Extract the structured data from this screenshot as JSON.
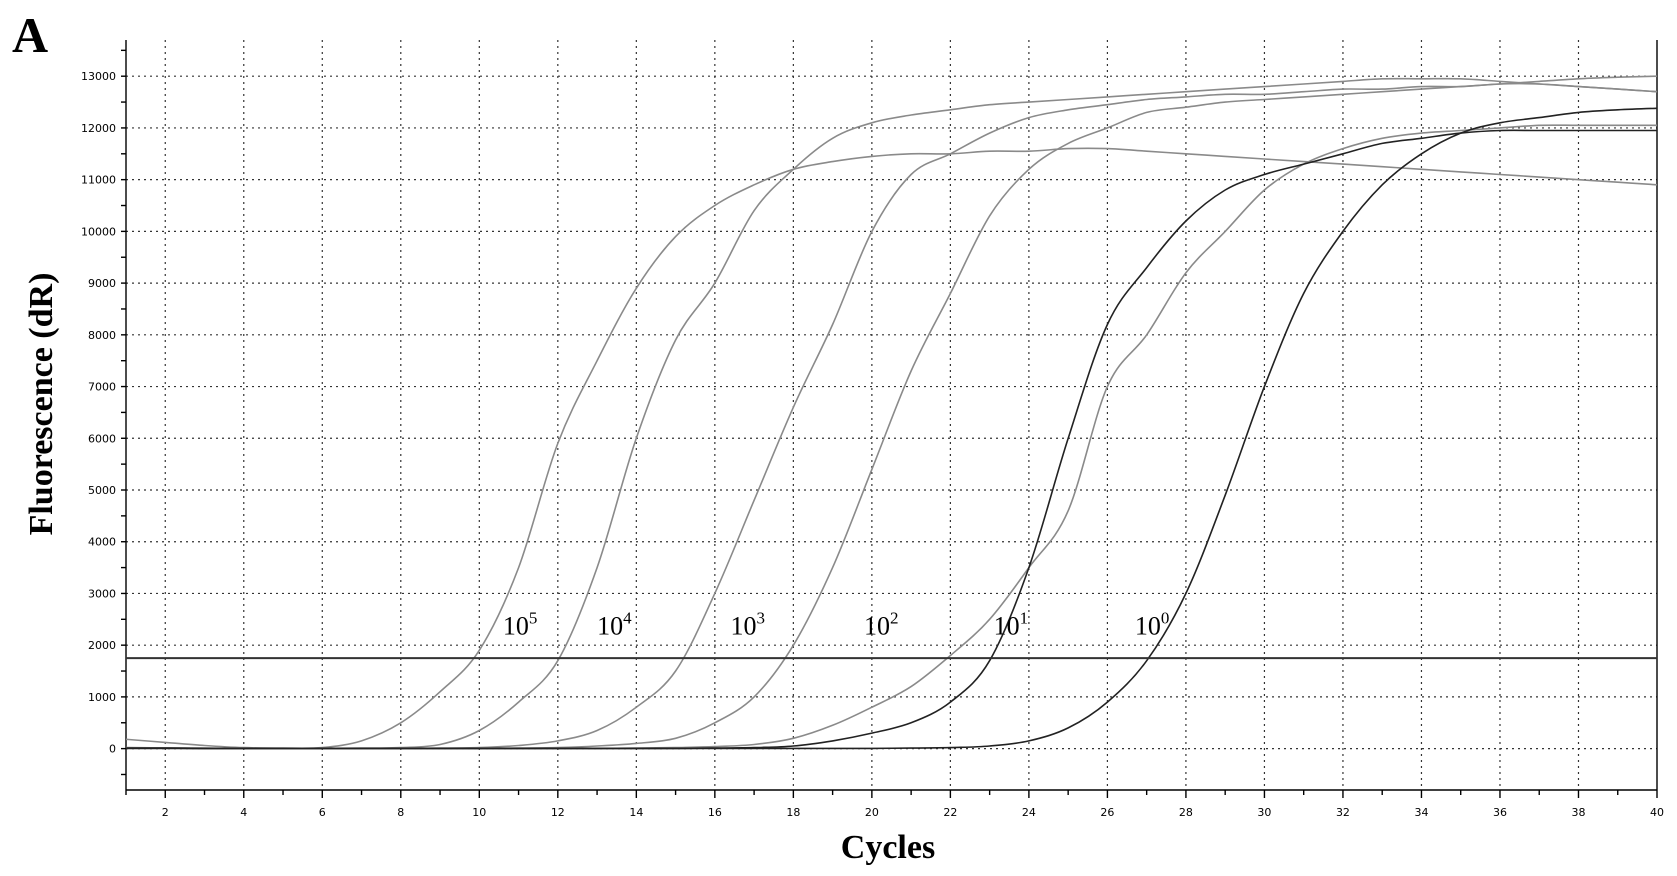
{
  "panel_label": "A",
  "chart_data": {
    "type": "line",
    "xlabel": "Cycles",
    "ylabel": "Fluorescence (dR)",
    "xlim": [
      1,
      40
    ],
    "ylim": [
      -800,
      13700
    ],
    "x_ticks": [
      2,
      4,
      6,
      8,
      10,
      12,
      14,
      16,
      18,
      20,
      22,
      24,
      26,
      28,
      30,
      32,
      34,
      36,
      38,
      40
    ],
    "y_ticks": [
      0,
      1000,
      2000,
      3000,
      4000,
      5000,
      6000,
      7000,
      8000,
      9000,
      10000,
      11000,
      12000,
      13000
    ],
    "grid": true,
    "threshold": 1750,
    "colors": {
      "gray": "#8a8a8a",
      "dark": "#222222",
      "threshold": "#333333"
    },
    "x": [
      1,
      2,
      3,
      4,
      5,
      6,
      7,
      8,
      9,
      10,
      11,
      12,
      13,
      14,
      15,
      16,
      17,
      18,
      19,
      20,
      21,
      22,
      23,
      24,
      25,
      26,
      27,
      28,
      29,
      30,
      31,
      32,
      33,
      34,
      35,
      36,
      37,
      38,
      39,
      40
    ],
    "series": [
      {
        "label_base": "10",
        "label_exp": "5",
        "label_at": [
          10.6,
          2400
        ],
        "color": "gray",
        "values": [
          180,
          120,
          60,
          20,
          10,
          20,
          150,
          500,
          1100,
          1900,
          3500,
          5900,
          7500,
          8900,
          9900,
          10500,
          10900,
          11200,
          11350,
          11450,
          11500,
          11500,
          11550,
          11550,
          11600,
          11600,
          11550,
          11500,
          11450,
          11400,
          11350,
          11300,
          11250,
          11200,
          11150,
          11100,
          11050,
          11000,
          10950,
          10900
        ]
      },
      {
        "label_base": "10",
        "label_exp": "4",
        "label_at": [
          13.0,
          2400
        ],
        "color": "gray",
        "values": [
          20,
          15,
          10,
          5,
          5,
          5,
          10,
          20,
          80,
          350,
          900,
          1700,
          3500,
          6000,
          7900,
          9000,
          10400,
          11200,
          11800,
          12100,
          12250,
          12350,
          12450,
          12500,
          12550,
          12600,
          12650,
          12700,
          12750,
          12800,
          12850,
          12900,
          12950,
          12950,
          12950,
          12900,
          12850,
          12800,
          12750,
          12700
        ]
      },
      {
        "label_base": "10",
        "label_exp": "3",
        "label_at": [
          16.4,
          2400
        ],
        "color": "gray",
        "values": [
          10,
          10,
          5,
          5,
          5,
          5,
          5,
          5,
          10,
          20,
          60,
          150,
          350,
          800,
          1500,
          3000,
          4800,
          6600,
          8200,
          10000,
          11100,
          11500,
          11900,
          12200,
          12350,
          12450,
          12550,
          12600,
          12650,
          12650,
          12700,
          12750,
          12750,
          12800,
          12800,
          12850,
          12850,
          12800,
          12750,
          12700
        ]
      },
      {
        "label_base": "10",
        "label_exp": "2",
        "label_at": [
          19.8,
          2400
        ],
        "color": "gray",
        "values": [
          10,
          10,
          5,
          5,
          5,
          5,
          5,
          5,
          5,
          5,
          10,
          20,
          50,
          100,
          200,
          500,
          1000,
          2000,
          3500,
          5400,
          7300,
          8800,
          10300,
          11200,
          11700,
          12000,
          12300,
          12400,
          12500,
          12550,
          12600,
          12650,
          12700,
          12750,
          12800,
          12850,
          12900,
          12950,
          12980,
          13000
        ]
      },
      {
        "label_base": "10",
        "label_exp": "1",
        "label_at": [
          23.1,
          2400
        ],
        "color": "gray",
        "values": [
          10,
          10,
          5,
          5,
          5,
          5,
          5,
          5,
          5,
          5,
          5,
          5,
          5,
          10,
          20,
          40,
          80,
          200,
          450,
          800,
          1200,
          1800,
          2500,
          3500,
          4600,
          7000,
          8000,
          9200,
          10000,
          10800,
          11300,
          11600,
          11800,
          11900,
          11950,
          12000,
          12050,
          12050,
          12050,
          12050
        ]
      },
      {
        "label_base": "10",
        "label_exp": "0",
        "label_at": [
          26.7,
          2400
        ],
        "color": "dark",
        "values": [
          10,
          10,
          5,
          5,
          5,
          5,
          5,
          5,
          5,
          5,
          5,
          5,
          5,
          5,
          5,
          10,
          20,
          50,
          150,
          300,
          500,
          900,
          1700,
          3500,
          6000,
          8200,
          9300,
          10200,
          10800,
          11100,
          11300,
          11500,
          11700,
          11800,
          11900,
          11950,
          11950,
          11950,
          11950,
          11950
        ]
      },
      {
        "label_base": "",
        "label_exp": "",
        "label_at": [
          0,
          0
        ],
        "color": "dark",
        "values": [
          5,
          5,
          5,
          5,
          5,
          5,
          5,
          5,
          5,
          5,
          5,
          5,
          5,
          5,
          5,
          5,
          5,
          5,
          5,
          5,
          10,
          20,
          50,
          150,
          400,
          900,
          1700,
          3000,
          4900,
          7000,
          8800,
          10000,
          10900,
          11500,
          11900,
          12100,
          12200,
          12300,
          12350,
          12380
        ]
      }
    ]
  }
}
